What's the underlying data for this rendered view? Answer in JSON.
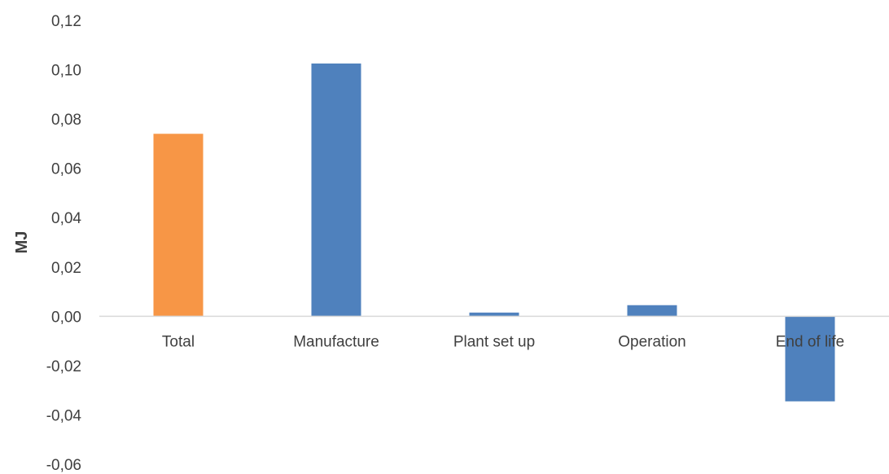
{
  "chart_data": {
    "type": "bar",
    "title": "",
    "xlabel": "",
    "ylabel": "MJ",
    "ylim": [
      -0.06,
      0.12
    ],
    "yticks": [
      "0,12",
      "0,10",
      "0,08",
      "0,06",
      "0,04",
      "0,02",
      "0,00",
      "-0,02",
      "-0,04",
      "-0,06"
    ],
    "ytick_values": [
      0.12,
      0.1,
      0.08,
      0.06,
      0.04,
      0.02,
      0.0,
      -0.02,
      -0.04,
      -0.06
    ],
    "categories": [
      "Total",
      "Manufacture",
      "Plant set up",
      "Operation",
      "End of life"
    ],
    "values": [
      0.074,
      0.1025,
      0.0015,
      0.0045,
      -0.0345
    ],
    "bar_colors": [
      "#F79646",
      "#4F81BD",
      "#4F81BD",
      "#4F81BD",
      "#4F81BD"
    ],
    "grid": false,
    "legend": "none",
    "zero_line_color": "#D9D9D9"
  }
}
